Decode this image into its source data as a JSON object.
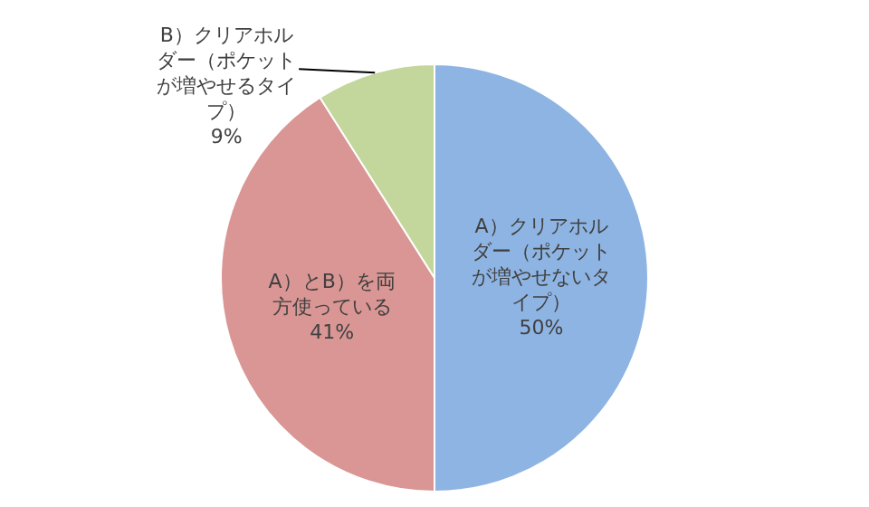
{
  "chart_data": {
    "type": "pie",
    "categories": [
      "A）クリアホルダー（ポケットが増やせないタイプ）",
      "A）とB）を両方使っている",
      "B）クリアホルダー（ポケットが増やせるタイプ）"
    ],
    "values": [
      50,
      41,
      9
    ],
    "value_labels": [
      "50%",
      "41%",
      "9%"
    ],
    "colors": [
      "#8eb4e3",
      "#d99694",
      "#c3d69b"
    ],
    "legend": false
  }
}
